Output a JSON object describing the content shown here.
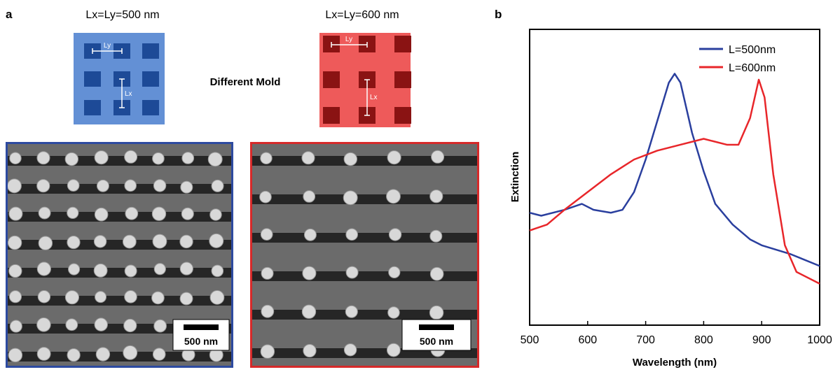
{
  "panel_a": {
    "label": "a",
    "left_title": "Lx=Ly=500 nm",
    "right_title": "Lx=Ly=600 nm",
    "middle_text": "Different Mold",
    "left_mold": {
      "ly": "Ly",
      "lx": "Lx"
    },
    "right_mold": {
      "ly": "Ly",
      "lx": "Lx"
    },
    "left_scale_bar": "500 nm",
    "right_scale_bar": "500 nm"
  },
  "chart_data": {
    "type": "line",
    "panel_label": "b",
    "xlabel": "Wavelength (nm)",
    "ylabel": "Extinction",
    "xlim": [
      500,
      1000
    ],
    "xticks": [
      500,
      600,
      700,
      800,
      900,
      1000
    ],
    "ylim": [
      0,
      1
    ],
    "legend": "upper right",
    "series": [
      {
        "name": "L=500nm",
        "color": "#2a3f9e",
        "x": [
          500,
          520,
          560,
          590,
          610,
          640,
          660,
          680,
          700,
          720,
          740,
          750,
          760,
          780,
          800,
          820,
          850,
          880,
          900,
          950,
          1000
        ],
        "values": [
          0.38,
          0.37,
          0.39,
          0.41,
          0.39,
          0.38,
          0.39,
          0.45,
          0.56,
          0.69,
          0.82,
          0.85,
          0.82,
          0.65,
          0.52,
          0.41,
          0.34,
          0.29,
          0.27,
          0.24,
          0.2
        ]
      },
      {
        "name": "L=600nm",
        "color": "#e8262a",
        "x": [
          500,
          530,
          560,
          600,
          640,
          680,
          720,
          760,
          800,
          840,
          860,
          880,
          895,
          905,
          920,
          940,
          960,
          1000
        ],
        "values": [
          0.32,
          0.34,
          0.39,
          0.45,
          0.51,
          0.56,
          0.59,
          0.61,
          0.63,
          0.61,
          0.61,
          0.7,
          0.83,
          0.77,
          0.51,
          0.27,
          0.18,
          0.14
        ]
      }
    ]
  }
}
